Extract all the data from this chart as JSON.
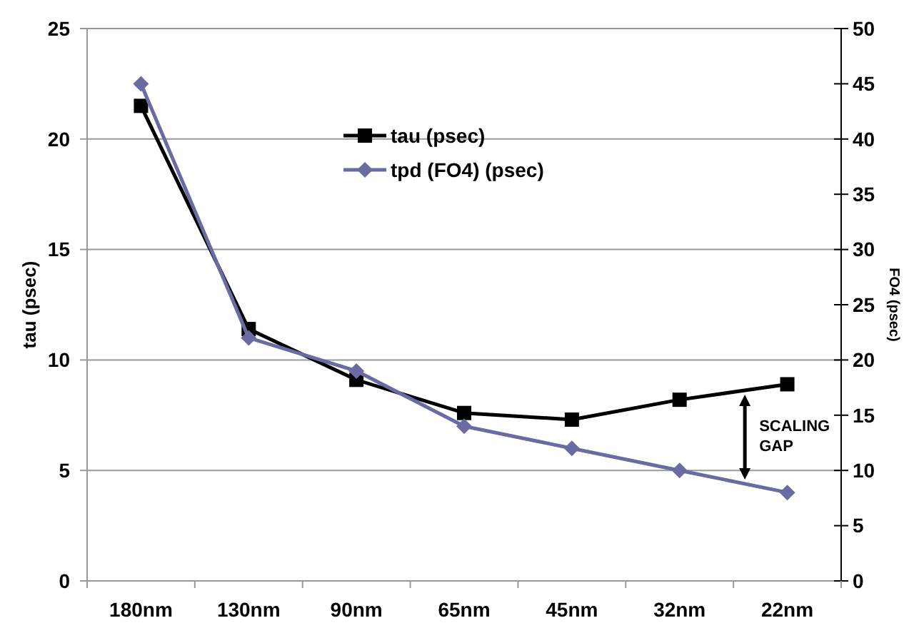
{
  "chart_data": {
    "type": "line",
    "ylabel": "tau (psec)",
    "y2label": "FO4 (psec)",
    "categories": [
      "180nm",
      "130nm",
      "90nm",
      "65nm",
      "45nm",
      "32nm",
      "22nm"
    ],
    "series": [
      {
        "name": "tau (psec)",
        "color": "#000000",
        "marker": "square",
        "values": [
          21.5,
          11.4,
          9.1,
          7.6,
          7.3,
          8.2,
          8.9
        ]
      },
      {
        "name": "tpd (FO4) (psec)",
        "color": "#6b6ba3",
        "marker": "diamond",
        "axis": "y2",
        "values": [
          45,
          22,
          19,
          14,
          12,
          10,
          8
        ]
      }
    ],
    "ylim": [
      0,
      25
    ],
    "yticks": [
      0,
      5,
      10,
      15,
      20,
      25
    ],
    "y2lim": [
      0,
      50
    ],
    "y2ticks": [
      0,
      5,
      10,
      15,
      20,
      25,
      30,
      35,
      40,
      45,
      50
    ],
    "grid": "y",
    "legend": "top",
    "annotations": [
      "SCALING GAP"
    ]
  }
}
